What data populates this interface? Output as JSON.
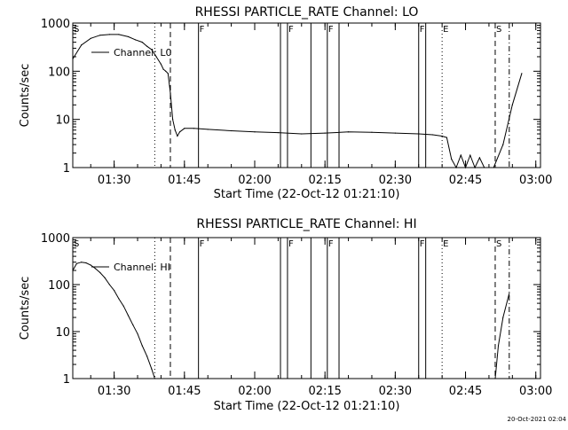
{
  "footer": {
    "timestamp": "20-Oct-2021 02:04"
  },
  "chart_data": [
    {
      "type": "line",
      "title": "RHESSI PARTICLE_RATE Channel: LO",
      "xlabel": "Start Time (22-Oct-12 01:21:10)",
      "ylabel": "Counts/sec",
      "yscale": "log",
      "ylim": [
        1,
        1000
      ],
      "xlim": [
        "01:21:10",
        "03:01:00"
      ],
      "xticks": [
        "01:30",
        "01:45",
        "02:00",
        "02:15",
        "02:30",
        "02:45",
        "03:00"
      ],
      "yticks": [
        "1",
        "10",
        "100",
        "1000"
      ],
      "legend": {
        "position": "top-left",
        "entries": [
          "Channel: L0"
        ]
      },
      "series": [
        {
          "name": "Channel: L0",
          "x": [
            "01:21:10",
            "01:23:00",
            "01:25:00",
            "01:27:00",
            "01:29:00",
            "01:31:00",
            "01:33:00",
            "01:34:30",
            "01:36:00",
            "01:37:00",
            "01:38:00",
            "01:39:00",
            "01:40:00",
            "01:40:30",
            "01:41:00",
            "01:41:30",
            "01:42:00",
            "01:42:30",
            "01:43:00",
            "01:43:30",
            "01:44:00",
            "01:45:00",
            "01:47:00",
            "01:50:00",
            "01:55:00",
            "02:00:00",
            "02:05:00",
            "02:10:00",
            "02:15:00",
            "02:20:00",
            "02:25:00",
            "02:30:00",
            "02:35:00",
            "02:38:00",
            "02:40:00",
            "02:41:00",
            "02:42:00",
            "02:43:00",
            "02:44:00",
            "02:45:00",
            "02:46:00",
            "02:47:00",
            "02:48:00",
            "02:49:00",
            "02:51:00",
            "02:53:00",
            "02:55:00",
            "02:57:00"
          ],
          "values": [
            180,
            350,
            480,
            560,
            580,
            580,
            520,
            450,
            400,
            330,
            280,
            200,
            140,
            110,
            100,
            90,
            35,
            10,
            6,
            4.5,
            5.5,
            6.5,
            6.5,
            6.2,
            5.8,
            5.5,
            5.3,
            5.0,
            5.2,
            5.5,
            5.4,
            5.2,
            5.0,
            4.8,
            4.5,
            4.2,
            1.5,
            1,
            1.8,
            1,
            1.8,
            1,
            1.6,
            1,
            1,
            3,
            20,
            90
          ]
        }
      ],
      "markers": [
        {
          "time": "01:21:10",
          "label": "S",
          "style": "solid"
        },
        {
          "time": "01:38:40",
          "label": "",
          "style": "dotted"
        },
        {
          "time": "01:42:00",
          "label": "",
          "style": "dashed"
        },
        {
          "time": "01:48:00",
          "label": "F",
          "style": "solid"
        },
        {
          "time": "02:05:30",
          "label": "",
          "style": "solid"
        },
        {
          "time": "02:07:00",
          "label": "F",
          "style": "solid"
        },
        {
          "time": "02:12:00",
          "label": "",
          "style": "solid"
        },
        {
          "time": "02:15:30",
          "label": "F",
          "style": "solid"
        },
        {
          "time": "02:18:00",
          "label": "",
          "style": "solid"
        },
        {
          "time": "02:35:00",
          "label": "F",
          "style": "solid"
        },
        {
          "time": "02:36:30",
          "label": "",
          "style": "solid"
        },
        {
          "time": "02:40:00",
          "label": "E",
          "style": "dotted"
        },
        {
          "time": "02:51:20",
          "label": "S",
          "style": "dashed"
        },
        {
          "time": "02:54:20",
          "label": "",
          "style": "dashdot"
        }
      ]
    },
    {
      "type": "line",
      "title": "RHESSI PARTICLE_RATE Channel: HI",
      "xlabel": "Start Time (22-Oct-12 01:21:10)",
      "ylabel": "Counts/sec",
      "yscale": "log",
      "ylim": [
        1,
        1000
      ],
      "xlim": [
        "01:21:10",
        "03:01:00"
      ],
      "xticks": [
        "01:30",
        "01:45",
        "02:00",
        "02:15",
        "02:30",
        "02:45",
        "03:00"
      ],
      "yticks": [
        "1",
        "10",
        "100",
        "1000"
      ],
      "legend": {
        "position": "top-left",
        "entries": [
          "Channel: HI"
        ]
      },
      "series": [
        {
          "name": "Channel: HI",
          "x": [
            "01:21:10",
            "01:22:00",
            "01:23:00",
            "01:24:00",
            "01:25:00",
            "01:26:00",
            "01:27:00",
            "01:28:00",
            "01:29:00",
            "01:30:00",
            "01:31:00",
            "01:32:00",
            "01:33:00",
            "01:34:00",
            "01:35:00",
            "01:36:00",
            "01:37:00",
            "01:38:00",
            "01:38:40",
            "02:51:20",
            "02:52:00",
            "02:53:00",
            "02:54:20"
          ],
          "values": [
            200,
            280,
            300,
            290,
            260,
            220,
            180,
            140,
            100,
            75,
            50,
            35,
            22,
            14,
            9,
            5,
            3,
            1.6,
            1,
            1,
            5,
            20,
            65
          ]
        }
      ],
      "markers": [
        {
          "time": "01:21:10",
          "label": "S",
          "style": "solid"
        },
        {
          "time": "01:38:40",
          "label": "",
          "style": "dotted"
        },
        {
          "time": "01:42:00",
          "label": "",
          "style": "dashed"
        },
        {
          "time": "01:48:00",
          "label": "F",
          "style": "solid"
        },
        {
          "time": "02:05:30",
          "label": "",
          "style": "solid"
        },
        {
          "time": "02:07:00",
          "label": "F",
          "style": "solid"
        },
        {
          "time": "02:12:00",
          "label": "",
          "style": "solid"
        },
        {
          "time": "02:15:30",
          "label": "F",
          "style": "solid"
        },
        {
          "time": "02:18:00",
          "label": "",
          "style": "solid"
        },
        {
          "time": "02:35:00",
          "label": "F",
          "style": "solid"
        },
        {
          "time": "02:36:30",
          "label": "",
          "style": "solid"
        },
        {
          "time": "02:40:00",
          "label": "E",
          "style": "dotted"
        },
        {
          "time": "02:51:20",
          "label": "S",
          "style": "dashed"
        },
        {
          "time": "02:54:20",
          "label": "",
          "style": "dashdot"
        }
      ]
    }
  ]
}
